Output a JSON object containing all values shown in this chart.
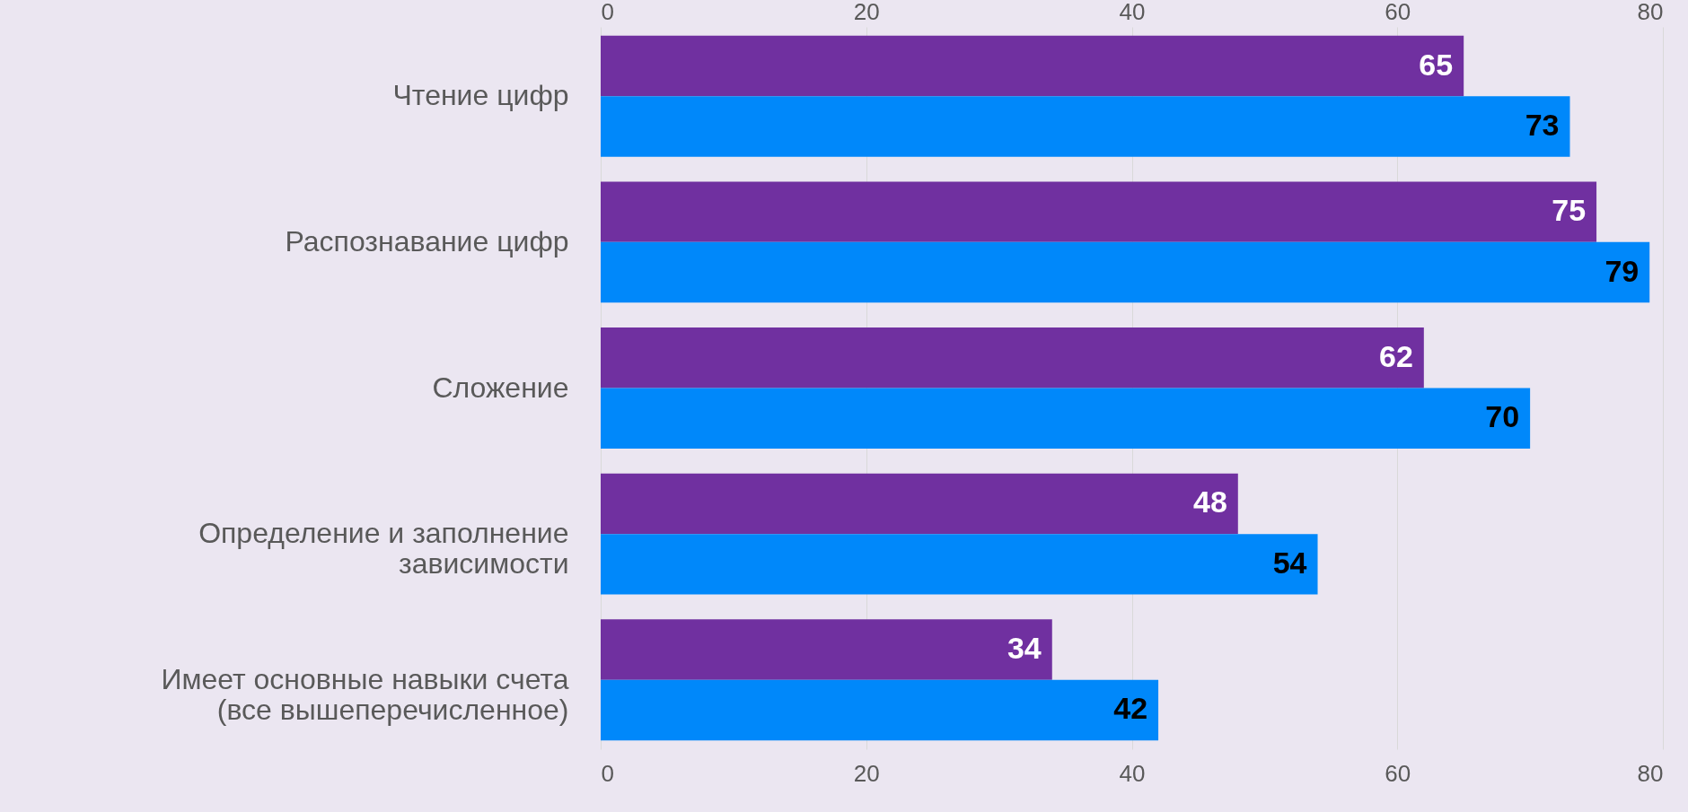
{
  "chart_data": {
    "type": "bar",
    "orientation": "horizontal",
    "categories": [
      "Чтение цифр",
      "Распознавание цифр",
      "Сложение",
      "Определение и заполнение зависимости",
      "Имеет основные навыки счета (все вышеперечисленное)"
    ],
    "series": [
      {
        "color": "#7030a0",
        "values": [
          65,
          75,
          62,
          48,
          34
        ]
      },
      {
        "color": "#0088fa",
        "values": [
          73,
          79,
          70,
          54,
          42
        ]
      }
    ],
    "xlim": [
      0,
      80
    ],
    "xticks": [
      0,
      20,
      40,
      60,
      80
    ],
    "x2lim": [
      0,
      80
    ],
    "x2ticks": [
      0,
      20,
      40,
      60,
      80
    ],
    "grid": "x",
    "data_labels": true
  }
}
